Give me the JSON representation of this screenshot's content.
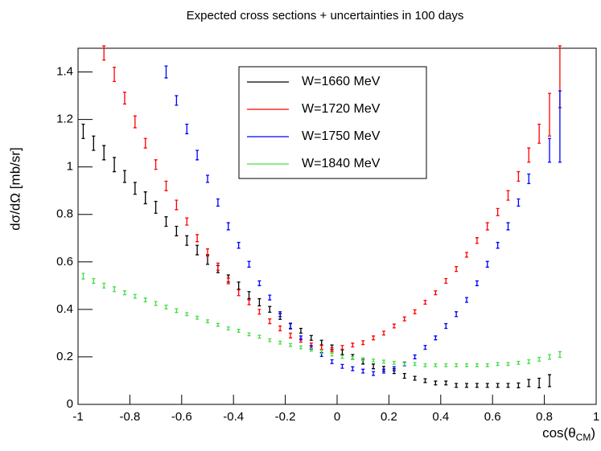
{
  "chart_data": {
    "type": "errorbar",
    "title": "Expected cross sections + uncertainties in 100 days",
    "x_label": {
      "main": "cos(θ",
      "sub": "CM",
      "close": ")"
    },
    "y_label": "dσ/dΩ [mb/sr]",
    "xlim": [
      -1,
      1
    ],
    "ylim": [
      0,
      1.5
    ],
    "xticks": [
      -1,
      -0.8,
      -0.6,
      -0.4,
      -0.2,
      0,
      0.2,
      0.4,
      0.6,
      0.8,
      1
    ],
    "yticks": [
      0,
      0.2,
      0.4,
      0.6,
      0.8,
      1,
      1.2,
      1.4
    ],
    "legend": "top-center",
    "series": [
      {
        "name": "W=1660 MeV",
        "color": "#000000",
        "x": [
          -0.98,
          -0.94,
          -0.9,
          -0.86,
          -0.82,
          -0.78,
          -0.74,
          -0.7,
          -0.66,
          -0.62,
          -0.58,
          -0.54,
          -0.5,
          -0.46,
          -0.42,
          -0.38,
          -0.34,
          -0.3,
          -0.26,
          -0.22,
          -0.18,
          -0.14,
          -0.1,
          -0.06,
          -0.02,
          0.02,
          0.06,
          0.1,
          0.14,
          0.18,
          0.22,
          0.26,
          0.3,
          0.34,
          0.38,
          0.42,
          0.46,
          0.5,
          0.54,
          0.58,
          0.62,
          0.66,
          0.7,
          0.74,
          0.78,
          0.82
        ],
        "values": [
          1.15,
          1.1,
          1.06,
          1.01,
          0.96,
          0.91,
          0.87,
          0.83,
          0.77,
          0.73,
          0.69,
          0.65,
          0.61,
          0.57,
          0.53,
          0.5,
          0.46,
          0.43,
          0.4,
          0.37,
          0.33,
          0.31,
          0.28,
          0.26,
          0.24,
          0.22,
          0.2,
          0.18,
          0.16,
          0.15,
          0.14,
          0.12,
          0.11,
          0.1,
          0.09,
          0.09,
          0.08,
          0.08,
          0.08,
          0.08,
          0.08,
          0.08,
          0.08,
          0.09,
          0.09,
          0.1
        ],
        "errors": [
          0.03,
          0.03,
          0.03,
          0.03,
          0.025,
          0.025,
          0.025,
          0.025,
          0.02,
          0.02,
          0.02,
          0.02,
          0.02,
          0.015,
          0.015,
          0.015,
          0.015,
          0.015,
          0.012,
          0.012,
          0.012,
          0.01,
          0.01,
          0.01,
          0.01,
          0.01,
          0.01,
          0.01,
          0.01,
          0.01,
          0.01,
          0.01,
          0.008,
          0.008,
          0.008,
          0.008,
          0.008,
          0.008,
          0.008,
          0.008,
          0.008,
          0.008,
          0.01,
          0.015,
          0.02,
          0.025
        ]
      },
      {
        "name": "W=1720 MeV",
        "color": "#ff0000",
        "x": [
          -0.9,
          -0.86,
          -0.82,
          -0.78,
          -0.74,
          -0.7,
          -0.66,
          -0.62,
          -0.58,
          -0.54,
          -0.5,
          -0.46,
          -0.42,
          -0.38,
          -0.34,
          -0.3,
          -0.26,
          -0.22,
          -0.18,
          -0.14,
          -0.1,
          -0.06,
          -0.02,
          0.02,
          0.06,
          0.1,
          0.14,
          0.18,
          0.22,
          0.26,
          0.3,
          0.34,
          0.38,
          0.42,
          0.46,
          0.5,
          0.54,
          0.58,
          0.62,
          0.66,
          0.7,
          0.74,
          0.78,
          0.82,
          0.86
        ],
        "values": [
          1.48,
          1.39,
          1.29,
          1.19,
          1.1,
          1.01,
          0.92,
          0.84,
          0.77,
          0.7,
          0.64,
          0.58,
          0.52,
          0.47,
          0.43,
          0.39,
          0.35,
          0.32,
          0.29,
          0.27,
          0.25,
          0.24,
          0.23,
          0.24,
          0.25,
          0.26,
          0.28,
          0.3,
          0.33,
          0.36,
          0.39,
          0.43,
          0.47,
          0.52,
          0.57,
          0.63,
          0.69,
          0.75,
          0.81,
          0.88,
          0.96,
          1.05,
          1.14,
          1.22,
          1.38
        ],
        "errors": [
          0.03,
          0.03,
          0.025,
          0.025,
          0.02,
          0.02,
          0.02,
          0.02,
          0.015,
          0.015,
          0.015,
          0.015,
          0.012,
          0.012,
          0.01,
          0.01,
          0.01,
          0.01,
          0.01,
          0.008,
          0.008,
          0.008,
          0.008,
          0.008,
          0.008,
          0.008,
          0.008,
          0.008,
          0.008,
          0.008,
          0.008,
          0.008,
          0.008,
          0.01,
          0.01,
          0.01,
          0.012,
          0.015,
          0.015,
          0.02,
          0.02,
          0.03,
          0.04,
          0.09,
          0.13
        ]
      },
      {
        "name": "W=1750 MeV",
        "color": "#0000ff",
        "x": [
          -0.66,
          -0.62,
          -0.58,
          -0.54,
          -0.5,
          -0.46,
          -0.42,
          -0.38,
          -0.34,
          -0.3,
          -0.26,
          -0.22,
          -0.18,
          -0.14,
          -0.1,
          -0.06,
          -0.02,
          0.02,
          0.06,
          0.1,
          0.14,
          0.18,
          0.22,
          0.26,
          0.3,
          0.34,
          0.38,
          0.42,
          0.46,
          0.5,
          0.54,
          0.58,
          0.62,
          0.66,
          0.7,
          0.74,
          0.82,
          0.86
        ],
        "values": [
          1.4,
          1.28,
          1.16,
          1.05,
          0.95,
          0.85,
          0.75,
          0.67,
          0.59,
          0.51,
          0.45,
          0.38,
          0.33,
          0.28,
          0.24,
          0.21,
          0.18,
          0.16,
          0.15,
          0.14,
          0.13,
          0.14,
          0.15,
          0.17,
          0.2,
          0.24,
          0.28,
          0.33,
          0.38,
          0.44,
          0.51,
          0.59,
          0.67,
          0.75,
          0.85,
          0.95,
          1.07,
          1.17
        ],
        "errors": [
          0.025,
          0.02,
          0.02,
          0.02,
          0.015,
          0.015,
          0.015,
          0.012,
          0.012,
          0.01,
          0.01,
          0.01,
          0.01,
          0.008,
          0.008,
          0.008,
          0.008,
          0.008,
          0.008,
          0.008,
          0.008,
          0.008,
          0.008,
          0.008,
          0.008,
          0.008,
          0.008,
          0.01,
          0.01,
          0.01,
          0.01,
          0.012,
          0.012,
          0.015,
          0.015,
          0.02,
          0.05,
          0.15
        ]
      },
      {
        "name": "W=1840 MeV",
        "color": "#44dd44",
        "x": [
          -0.98,
          -0.94,
          -0.9,
          -0.86,
          -0.82,
          -0.78,
          -0.74,
          -0.7,
          -0.66,
          -0.62,
          -0.58,
          -0.54,
          -0.5,
          -0.46,
          -0.42,
          -0.38,
          -0.34,
          -0.3,
          -0.26,
          -0.22,
          -0.18,
          -0.14,
          -0.1,
          -0.06,
          -0.02,
          0.02,
          0.06,
          0.1,
          0.14,
          0.18,
          0.22,
          0.26,
          0.3,
          0.34,
          0.38,
          0.42,
          0.46,
          0.5,
          0.54,
          0.58,
          0.62,
          0.66,
          0.7,
          0.74,
          0.78,
          0.82,
          0.86
        ],
        "values": [
          0.54,
          0.52,
          0.5,
          0.485,
          0.47,
          0.455,
          0.44,
          0.425,
          0.41,
          0.395,
          0.38,
          0.365,
          0.35,
          0.335,
          0.32,
          0.31,
          0.295,
          0.285,
          0.27,
          0.26,
          0.25,
          0.24,
          0.23,
          0.22,
          0.21,
          0.2,
          0.195,
          0.19,
          0.185,
          0.18,
          0.175,
          0.17,
          0.17,
          0.165,
          0.165,
          0.165,
          0.165,
          0.165,
          0.165,
          0.165,
          0.17,
          0.17,
          0.175,
          0.18,
          0.19,
          0.2,
          0.21
        ],
        "errors": [
          0.012,
          0.01,
          0.01,
          0.01,
          0.008,
          0.008,
          0.008,
          0.008,
          0.008,
          0.008,
          0.006,
          0.006,
          0.006,
          0.006,
          0.006,
          0.006,
          0.006,
          0.006,
          0.006,
          0.006,
          0.006,
          0.006,
          0.006,
          0.006,
          0.006,
          0.006,
          0.006,
          0.006,
          0.006,
          0.006,
          0.006,
          0.006,
          0.006,
          0.006,
          0.006,
          0.006,
          0.006,
          0.006,
          0.006,
          0.006,
          0.006,
          0.006,
          0.006,
          0.008,
          0.008,
          0.01,
          0.012
        ]
      }
    ]
  }
}
